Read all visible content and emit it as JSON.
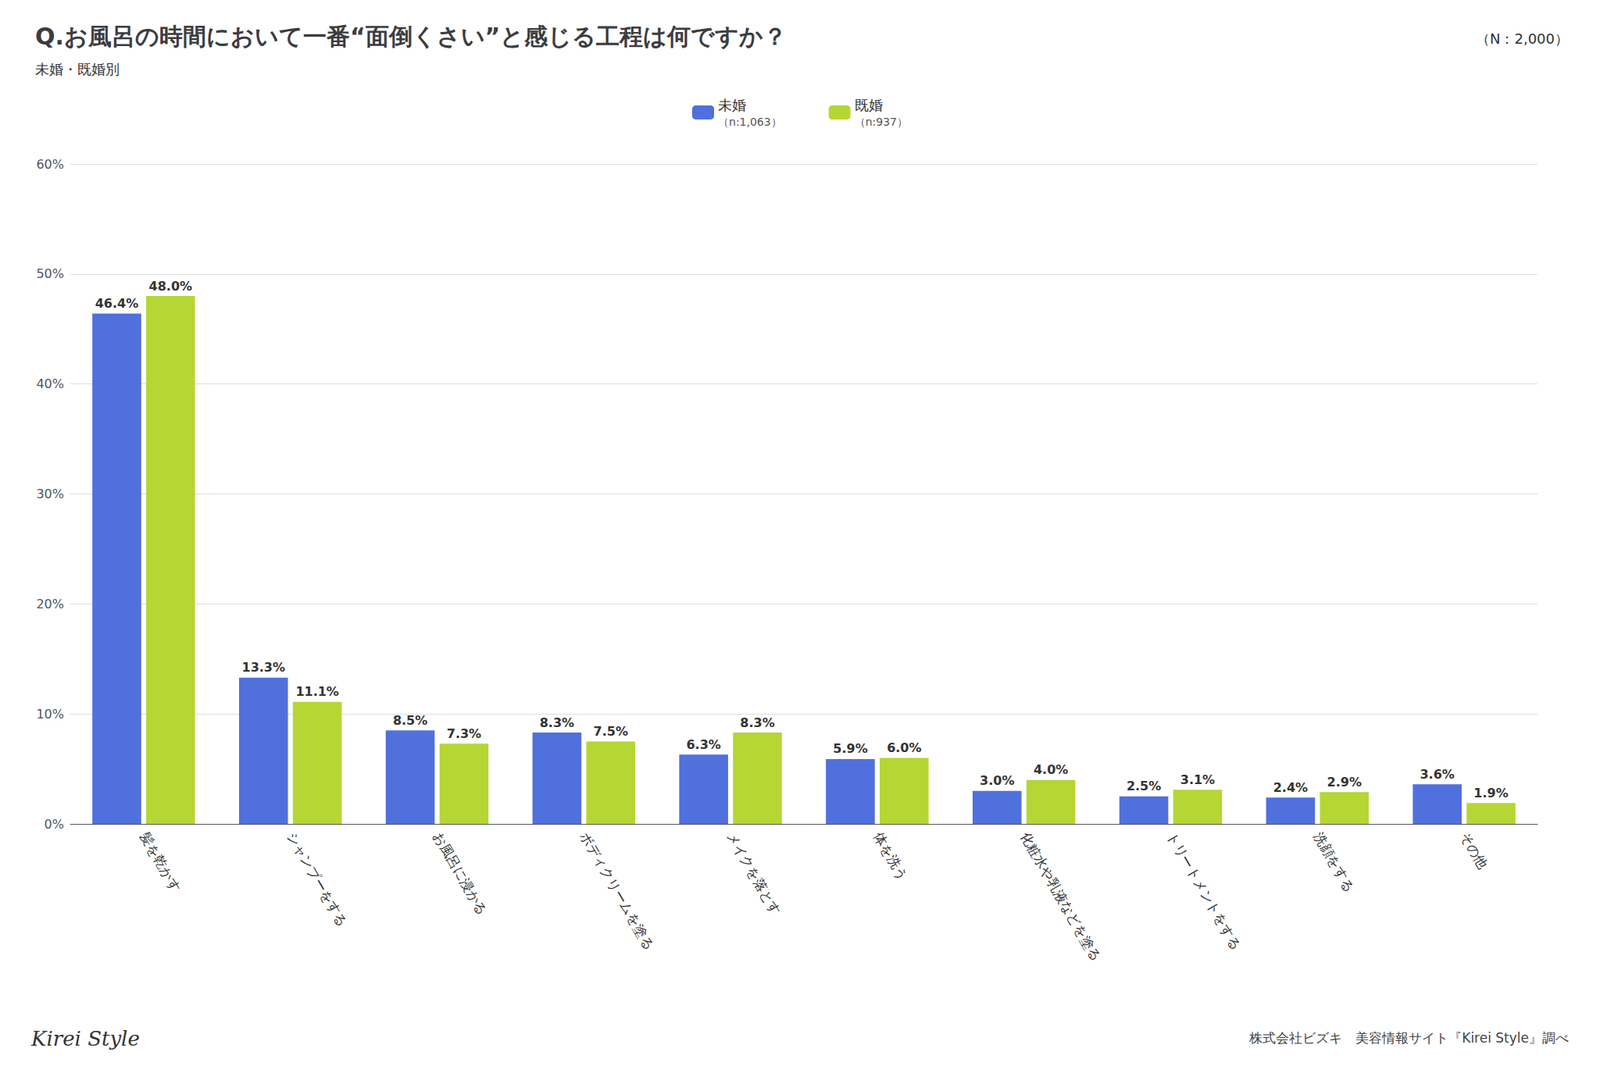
{
  "chart_data": {
    "type": "bar",
    "title": "Q.お風呂の時間において一番“面倒くさい”と感じる工程は何ですか？",
    "subtitle": "未婚・既婚別",
    "annotations": [
      "（N：2,000）",
      "Kirei Style",
      "株式会社ビズキ　美容情報サイト『Kirei Style』調べ"
    ],
    "categories": [
      "髪を乾かす",
      "シャンプーをする",
      "お風呂に浸かる",
      "ボディクリームを塗る",
      "メイクを落とす",
      "体を洗う",
      "化粧水や乳液などを塗る",
      "トリートメントをする",
      "洗顔をする",
      "その他"
    ],
    "series": [
      {
        "name": "未婚",
        "note": "（n:1,063）",
        "values": [
          46.4,
          13.3,
          8.5,
          8.3,
          6.3,
          5.9,
          3.0,
          2.5,
          2.4,
          3.6
        ],
        "value_labels": [
          "46.4%",
          "13.3%",
          "8.5%",
          "8.3%",
          "6.3%",
          "5.9%",
          "3.0%",
          "2.5%",
          "2.4%",
          "3.6%"
        ]
      },
      {
        "name": "既婚",
        "note": "（n:937）",
        "values": [
          48.0,
          11.1,
          7.3,
          7.5,
          8.3,
          6.0,
          4.0,
          3.1,
          2.9,
          1.9
        ],
        "value_labels": [
          "48.0%",
          "11.1%",
          "7.3%",
          "7.5%",
          "8.3%",
          "6.0%",
          "4.0%",
          "3.1%",
          "2.9%",
          "1.9%"
        ]
      }
    ],
    "ylim": [
      0,
      60
    ],
    "yticks": [
      {
        "value": 0,
        "label": "0%"
      },
      {
        "value": 10,
        "label": "10%"
      },
      {
        "value": 20,
        "label": "20%"
      },
      {
        "value": 30,
        "label": "30%"
      },
      {
        "value": 40,
        "label": "40%"
      },
      {
        "value": 50,
        "label": "50%"
      },
      {
        "value": 60,
        "label": "60%"
      }
    ],
    "grid": true,
    "legend": "top",
    "data_labels": true
  }
}
